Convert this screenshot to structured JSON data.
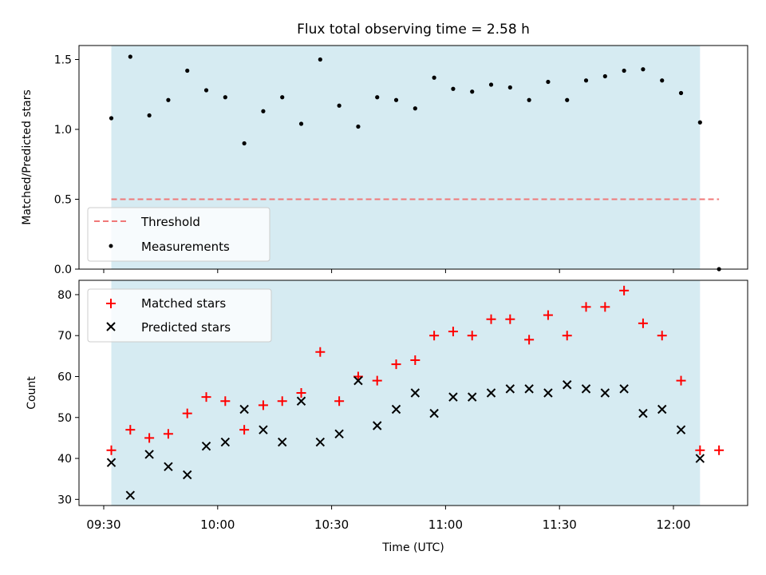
{
  "chart_data": [
    {
      "type": "scatter",
      "title": "Flux total observing time = 2.58 h",
      "ylabel": "Matched/Predicted stars",
      "xlabel": "",
      "ylim": [
        0.0,
        1.6
      ],
      "yticks": [
        0.0,
        0.5,
        1.0,
        1.5
      ],
      "ytick_labels": [
        "0.0",
        "0.5",
        "1.0",
        "1.5"
      ],
      "threshold": {
        "name": "Threshold",
        "value": 0.5,
        "x_range": [
          "09:32",
          "12:12"
        ],
        "color": "#f07878"
      },
      "observing_span": {
        "start": "09:32",
        "end": "12:07",
        "color": "#add8e6"
      },
      "grid": false,
      "legend_position": "lower-left",
      "series": [
        {
          "name": "Measurements",
          "color": "#000000",
          "points": [
            {
              "x": "09:32",
              "y": 1.08
            },
            {
              "x": "09:37",
              "y": 1.52
            },
            {
              "x": "09:42",
              "y": 1.1
            },
            {
              "x": "09:47",
              "y": 1.21
            },
            {
              "x": "09:52",
              "y": 1.42
            },
            {
              "x": "09:57",
              "y": 1.28
            },
            {
              "x": "10:02",
              "y": 1.23
            },
            {
              "x": "10:07",
              "y": 0.9
            },
            {
              "x": "10:12",
              "y": 1.13
            },
            {
              "x": "10:17",
              "y": 1.23
            },
            {
              "x": "10:22",
              "y": 1.04
            },
            {
              "x": "10:27",
              "y": 1.5
            },
            {
              "x": "10:32",
              "y": 1.17
            },
            {
              "x": "10:37",
              "y": 1.02
            },
            {
              "x": "10:42",
              "y": 1.23
            },
            {
              "x": "10:47",
              "y": 1.21
            },
            {
              "x": "10:52",
              "y": 1.15
            },
            {
              "x": "10:57",
              "y": 1.37
            },
            {
              "x": "11:02",
              "y": 1.29
            },
            {
              "x": "11:07",
              "y": 1.27
            },
            {
              "x": "11:12",
              "y": 1.32
            },
            {
              "x": "11:17",
              "y": 1.3
            },
            {
              "x": "11:22",
              "y": 1.21
            },
            {
              "x": "11:27",
              "y": 1.34
            },
            {
              "x": "11:32",
              "y": 1.21
            },
            {
              "x": "11:37",
              "y": 1.35
            },
            {
              "x": "11:42",
              "y": 1.38
            },
            {
              "x": "11:47",
              "y": 1.42
            },
            {
              "x": "11:52",
              "y": 1.43
            },
            {
              "x": "11:57",
              "y": 1.35
            },
            {
              "x": "12:02",
              "y": 1.26
            },
            {
              "x": "12:07",
              "y": 1.05
            },
            {
              "x": "12:12",
              "y": 0.0
            }
          ]
        }
      ]
    },
    {
      "type": "scatter",
      "title": "",
      "ylabel": "Count",
      "xlabel": "Time (UTC)",
      "ylim": [
        28.5,
        83.5
      ],
      "yticks": [
        30,
        40,
        50,
        60,
        70,
        80
      ],
      "ytick_labels": [
        "30",
        "40",
        "50",
        "60",
        "70",
        "80"
      ],
      "xticks": [
        "09:30",
        "10:00",
        "10:30",
        "11:00",
        "11:30",
        "12:00"
      ],
      "observing_span": {
        "start": "09:32",
        "end": "12:07",
        "color": "#add8e6"
      },
      "grid": false,
      "legend_position": "upper-left",
      "series": [
        {
          "name": "Matched stars",
          "marker": "+",
          "color": "#ff0000",
          "points": [
            {
              "x": "09:32",
              "y": 42
            },
            {
              "x": "09:37",
              "y": 47
            },
            {
              "x": "09:42",
              "y": 45
            },
            {
              "x": "09:47",
              "y": 46
            },
            {
              "x": "09:52",
              "y": 51
            },
            {
              "x": "09:57",
              "y": 55
            },
            {
              "x": "10:02",
              "y": 54
            },
            {
              "x": "10:07",
              "y": 47
            },
            {
              "x": "10:12",
              "y": 53
            },
            {
              "x": "10:17",
              "y": 54
            },
            {
              "x": "10:22",
              "y": 56
            },
            {
              "x": "10:27",
              "y": 66
            },
            {
              "x": "10:32",
              "y": 54
            },
            {
              "x": "10:37",
              "y": 60
            },
            {
              "x": "10:42",
              "y": 59
            },
            {
              "x": "10:47",
              "y": 63
            },
            {
              "x": "10:52",
              "y": 64
            },
            {
              "x": "10:57",
              "y": 70
            },
            {
              "x": "11:02",
              "y": 71
            },
            {
              "x": "11:07",
              "y": 70
            },
            {
              "x": "11:12",
              "y": 74
            },
            {
              "x": "11:17",
              "y": 74
            },
            {
              "x": "11:22",
              "y": 69
            },
            {
              "x": "11:27",
              "y": 75
            },
            {
              "x": "11:32",
              "y": 70
            },
            {
              "x": "11:37",
              "y": 77
            },
            {
              "x": "11:42",
              "y": 77
            },
            {
              "x": "11:47",
              "y": 81
            },
            {
              "x": "11:52",
              "y": 73
            },
            {
              "x": "11:57",
              "y": 70
            },
            {
              "x": "12:02",
              "y": 59
            },
            {
              "x": "12:07",
              "y": 42
            },
            {
              "x": "12:12",
              "y": 42
            }
          ]
        },
        {
          "name": "Predicted stars",
          "marker": "x",
          "color": "#000000",
          "points": [
            {
              "x": "09:32",
              "y": 39
            },
            {
              "x": "09:37",
              "y": 31
            },
            {
              "x": "09:42",
              "y": 41
            },
            {
              "x": "09:47",
              "y": 38
            },
            {
              "x": "09:52",
              "y": 36
            },
            {
              "x": "09:57",
              "y": 43
            },
            {
              "x": "10:02",
              "y": 44
            },
            {
              "x": "10:07",
              "y": 52
            },
            {
              "x": "10:12",
              "y": 47
            },
            {
              "x": "10:17",
              "y": 44
            },
            {
              "x": "10:22",
              "y": 54
            },
            {
              "x": "10:27",
              "y": 44
            },
            {
              "x": "10:32",
              "y": 46
            },
            {
              "x": "10:37",
              "y": 59
            },
            {
              "x": "10:42",
              "y": 48
            },
            {
              "x": "10:47",
              "y": 52
            },
            {
              "x": "10:52",
              "y": 56
            },
            {
              "x": "10:57",
              "y": 51
            },
            {
              "x": "11:02",
              "y": 55
            },
            {
              "x": "11:07",
              "y": 55
            },
            {
              "x": "11:12",
              "y": 56
            },
            {
              "x": "11:17",
              "y": 57
            },
            {
              "x": "11:22",
              "y": 57
            },
            {
              "x": "11:27",
              "y": 56
            },
            {
              "x": "11:32",
              "y": 58
            },
            {
              "x": "11:37",
              "y": 57
            },
            {
              "x": "11:42",
              "y": 56
            },
            {
              "x": "11:47",
              "y": 57
            },
            {
              "x": "11:52",
              "y": 51
            },
            {
              "x": "11:57",
              "y": 52
            },
            {
              "x": "12:02",
              "y": 47
            },
            {
              "x": "12:07",
              "y": 40
            }
          ]
        }
      ]
    }
  ]
}
